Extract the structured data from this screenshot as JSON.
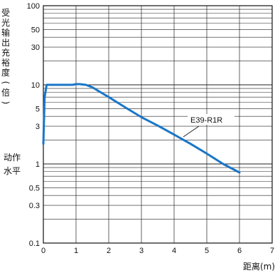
{
  "chart_data": {
    "type": "line",
    "ylabel": "受光输出充裕度(倍)",
    "xlabel": "距离(m)",
    "xlim": [
      0,
      7
    ],
    "ylim": [
      0.1,
      100
    ],
    "y_scale": "log",
    "grid": true,
    "x_ticks": [
      "0",
      "1",
      "2",
      "3",
      "4",
      "5",
      "6",
      "7"
    ],
    "y_ticks": [
      {
        "value": 100,
        "label": "100"
      },
      {
        "value": 50,
        "label": "50"
      },
      {
        "value": 30,
        "label": "30"
      },
      {
        "value": 10,
        "label": "10"
      },
      {
        "value": 5,
        "label": "5"
      },
      {
        "value": 3,
        "label": "3"
      },
      {
        "value": 1,
        "label": "1"
      },
      {
        "value": 0.5,
        "label": "0.5"
      },
      {
        "value": 0.3,
        "label": "0.3"
      },
      {
        "value": 0.1,
        "label": "0.1"
      }
    ],
    "annotations": [
      {
        "text": "动作",
        "value": 1
      },
      {
        "text": "水平",
        "value": 1
      }
    ],
    "series": [
      {
        "name": "E39-R1R",
        "color": "#1976c8",
        "x": [
          0,
          0.04,
          0.1,
          0.2,
          0.5,
          0.9,
          1.0,
          1.1,
          1.3,
          1.5,
          1.7,
          2.0,
          2.5,
          3.0,
          3.5,
          4.0,
          4.5,
          5.0,
          5.5,
          6.0
        ],
        "y": [
          1.8,
          7,
          10,
          10,
          10,
          10,
          10.2,
          10.2,
          10,
          9.3,
          8.3,
          7,
          5.2,
          3.9,
          3.05,
          2.35,
          1.8,
          1.35,
          1.0,
          0.78
        ]
      }
    ]
  }
}
